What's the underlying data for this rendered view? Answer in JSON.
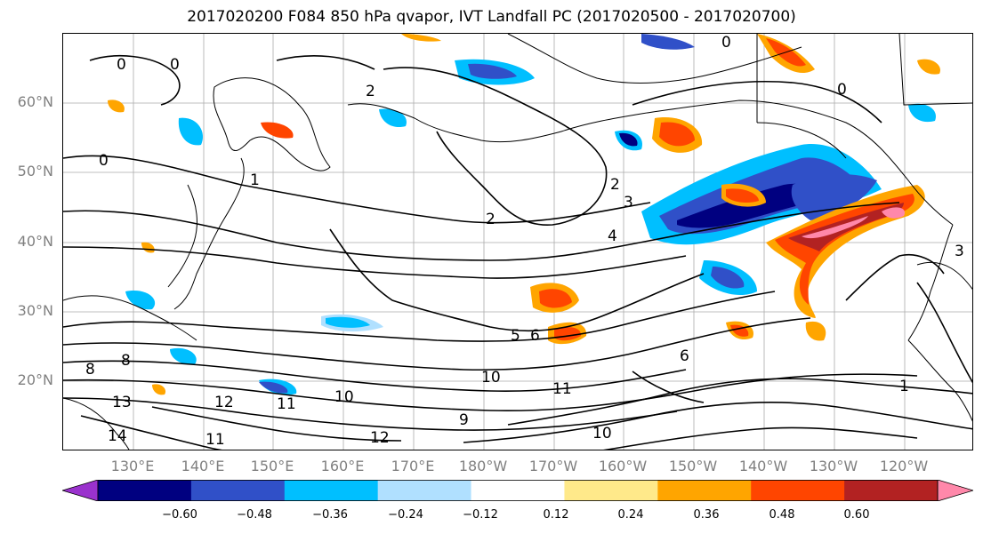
{
  "title": "2017020200 F084 850 hPa qvapor, IVT Landfall PC (2017020500 - 2017020700)",
  "map": {
    "lat_labels": [
      "60°N",
      "50°N",
      "40°N",
      "30°N",
      "20°N"
    ],
    "lon_labels": [
      "130°E",
      "140°E",
      "150°E",
      "160°E",
      "170°E",
      "180°W",
      "170°W",
      "160°W",
      "150°W",
      "140°W",
      "130°W",
      "120°W"
    ],
    "lat_range": [
      10,
      70
    ],
    "lon_range": [
      122,
      252
    ],
    "contour_labels": [
      "0",
      "0",
      "0",
      "0",
      "1",
      "2",
      "2",
      "2",
      "3",
      "4",
      "5",
      "6",
      "6",
      "8",
      "8",
      "9",
      "10",
      "10",
      "10",
      "11",
      "11",
      "11",
      "12",
      "12",
      "13",
      "14",
      "0",
      "1",
      "3"
    ]
  },
  "colorbar": {
    "colors": [
      "#9a32cd",
      "#000080",
      "#3050c8",
      "#00bfff",
      "#b0e0ff",
      "#ffffff",
      "#ffe98a",
      "#ffa500",
      "#ff4500",
      "#b22222",
      "#ff88aa"
    ],
    "ticks": [
      "−0.60",
      "−0.48",
      "−0.36",
      "−0.24",
      "−0.12",
      "0.12",
      "0.24",
      "0.36",
      "0.48",
      "0.60"
    ]
  }
}
